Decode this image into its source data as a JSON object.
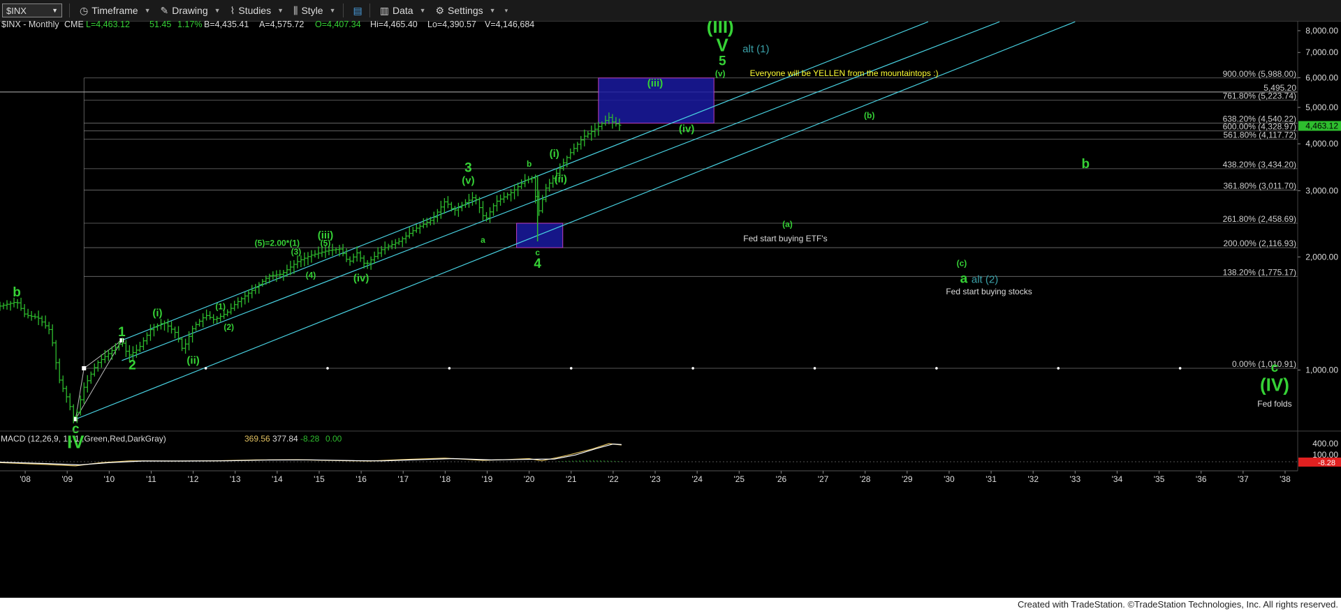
{
  "toolbar": {
    "symbol": "$INX",
    "items": [
      {
        "label": "Timeframe",
        "icon": "clock-icon"
      },
      {
        "label": "Drawing",
        "icon": "pencil-icon"
      },
      {
        "label": "Studies",
        "icon": "chart-icon"
      },
      {
        "label": "Style",
        "icon": "candles-icon"
      },
      {
        "label": "",
        "icon": "layout-icon"
      },
      {
        "label": "Data",
        "icon": "bars-icon"
      },
      {
        "label": "Settings",
        "icon": "gear-icon"
      }
    ]
  },
  "header": {
    "symbol_info": "$INX - Monthly",
    "exchange": "CME",
    "last": "L=4,463.12",
    "change": "51.45",
    "change_pct": "1.17%",
    "bid": "B=4,435.41",
    "ask": "A=4,575.72",
    "open": "O=4,407.34",
    "high": "Hi=4,465.40",
    "low": "Lo=4,390.57",
    "volume": "V=4,146,684"
  },
  "colors": {
    "price_bars": "#2ebd2e",
    "wave_label": "#36d236",
    "channel": "#48d0e0",
    "fib_line": "#777777",
    "box_fill": "#1a1aa0",
    "annotation_yellow": "#ffff33",
    "annotation_white": "#dddddd",
    "alt_label": "#3aa0a8",
    "macd_line": "#e0c060",
    "signal_line": "#ffffff",
    "hist_up": "#2ebd2e"
  },
  "chart_data": {
    "type": "bar",
    "scale": "log",
    "interval": "monthly",
    "ylim": [
      700,
      8000
    ],
    "y_ticks": [
      "1,000.00",
      "2,000.00",
      "3,000.00",
      "4,000.00",
      "5,000.00",
      "6,000.00",
      "7,000.00",
      "8,000.00"
    ],
    "y_tick_values": [
      1000,
      2000,
      3000,
      4000,
      5000,
      6000,
      7000,
      8000
    ],
    "x_range": [
      2007.4,
      2038.3
    ],
    "x_ticks": [
      "'08",
      "'09",
      "'10",
      "'11",
      "'12",
      "'13",
      "'14",
      "'15",
      "'16",
      "'17",
      "'18",
      "'19",
      "'20",
      "'21",
      "'22",
      "'23",
      "'24",
      "'25",
      "'26",
      "'27",
      "'28",
      "'29",
      "'30",
      "'31",
      "'32",
      "'33",
      "'34",
      "'35",
      "'36",
      "'37",
      "'38"
    ],
    "x_tick_values": [
      2008,
      2009,
      2010,
      2011,
      2012,
      2013,
      2014,
      2015,
      2016,
      2017,
      2018,
      2019,
      2020,
      2021,
      2022,
      2023,
      2024,
      2025,
      2026,
      2027,
      2028,
      2029,
      2030,
      2031,
      2032,
      2033,
      2034,
      2035,
      2036,
      2037,
      2038
    ],
    "last_price": "4,463.12",
    "last_price_value": 4463.12,
    "price_path": [
      [
        2007.4,
        1480
      ],
      [
        2007.8,
        1520
      ],
      [
        2008.0,
        1400
      ],
      [
        2008.3,
        1380
      ],
      [
        2008.6,
        1270
      ],
      [
        2008.8,
        950
      ],
      [
        2009.0,
        840
      ],
      [
        2009.18,
        735
      ],
      [
        2009.4,
        900
      ],
      [
        2009.7,
        1040
      ],
      [
        2010.0,
        1110
      ],
      [
        2010.3,
        1190
      ],
      [
        2010.45,
        1090
      ],
      [
        2010.7,
        1140
      ],
      [
        2011.0,
        1290
      ],
      [
        2011.3,
        1340
      ],
      [
        2011.6,
        1250
      ],
      [
        2011.75,
        1130
      ],
      [
        2012.0,
        1300
      ],
      [
        2012.3,
        1400
      ],
      [
        2012.5,
        1360
      ],
      [
        2012.8,
        1420
      ],
      [
        2013.0,
        1500
      ],
      [
        2013.4,
        1630
      ],
      [
        2013.8,
        1780
      ],
      [
        2014.1,
        1800
      ],
      [
        2014.5,
        1950
      ],
      [
        2014.8,
        2020
      ],
      [
        2015.2,
        2080
      ],
      [
        2015.5,
        2100
      ],
      [
        2015.7,
        1930
      ],
      [
        2015.9,
        2050
      ],
      [
        2016.1,
        1900
      ],
      [
        2016.5,
        2100
      ],
      [
        2016.9,
        2200
      ],
      [
        2017.3,
        2380
      ],
      [
        2017.7,
        2520
      ],
      [
        2018.0,
        2820
      ],
      [
        2018.2,
        2650
      ],
      [
        2018.7,
        2900
      ],
      [
        2018.95,
        2500
      ],
      [
        2019.2,
        2800
      ],
      [
        2019.6,
        2980
      ],
      [
        2019.9,
        3200
      ],
      [
        2020.1,
        3250
      ],
      [
        2020.2,
        2580
      ],
      [
        2020.4,
        3050
      ],
      [
        2020.7,
        3400
      ],
      [
        2020.95,
        3750
      ],
      [
        2021.3,
        4180
      ],
      [
        2021.6,
        4400
      ],
      [
        2021.9,
        4700
      ],
      [
        2022.0,
        4550
      ],
      [
        2022.2,
        4463
      ]
    ],
    "fib_levels": [
      {
        "label": "900.00% (5,988.00)",
        "value": 5988
      },
      {
        "label": "5,495.20",
        "value": 5495
      },
      {
        "label": "761.80% (5,223.74)",
        "value": 5224
      },
      {
        "label": "638.20% (4,540.22)",
        "value": 4540
      },
      {
        "label": "600.00% (4,328.97)",
        "value": 4329
      },
      {
        "label": "561.80% (4,117.72)",
        "value": 4118
      },
      {
        "label": "438.20% (3,434.20)",
        "value": 3434
      },
      {
        "label": "361.80% (3,011.70)",
        "value": 3012
      },
      {
        "label": "261.80% (2,458.69)",
        "value": 2459
      },
      {
        "label": "200.00% (2,116.93)",
        "value": 2117
      },
      {
        "label": "138.20% (1,775.17)",
        "value": 1775
      },
      {
        "label": "0.00% (1,010.91)",
        "value": 1011
      }
    ],
    "wave_labels": [
      {
        "text": "b",
        "x": 2007.8,
        "y": 1570,
        "size": "large"
      },
      {
        "text": "c",
        "x": 2009.2,
        "y": 680,
        "size": "large"
      },
      {
        "text": "IV",
        "x": 2009.2,
        "y": 620,
        "size": "xlarge"
      },
      {
        "text": "1",
        "x": 2010.3,
        "y": 1230,
        "size": "large"
      },
      {
        "text": "2",
        "x": 2010.55,
        "y": 1005,
        "size": "large"
      },
      {
        "text": "(i)",
        "x": 2011.15,
        "y": 1390,
        "size": "medium"
      },
      {
        "text": "(ii)",
        "x": 2012.0,
        "y": 1040,
        "size": "medium"
      },
      {
        "text": "(1)",
        "x": 2012.65,
        "y": 1450,
        "size": "small"
      },
      {
        "text": "(2)",
        "x": 2012.85,
        "y": 1280,
        "size": "small"
      },
      {
        "text": "(5)=2.00*(1)",
        "x": 2014.0,
        "y": 2140,
        "size": "small"
      },
      {
        "text": "(3)",
        "x": 2014.45,
        "y": 2030,
        "size": "small"
      },
      {
        "text": "(iii)",
        "x": 2015.15,
        "y": 2240,
        "size": "medium"
      },
      {
        "text": "(5)",
        "x": 2015.15,
        "y": 2140,
        "size": "small"
      },
      {
        "text": "(4)",
        "x": 2014.8,
        "y": 1760,
        "size": "small"
      },
      {
        "text": "(iv)",
        "x": 2016.0,
        "y": 1720,
        "size": "medium"
      },
      {
        "text": "3",
        "x": 2018.55,
        "y": 3370,
        "size": "large"
      },
      {
        "text": "(v)",
        "x": 2018.55,
        "y": 3130,
        "size": "medium"
      },
      {
        "text": "a",
        "x": 2018.9,
        "y": 2180,
        "size": "small"
      },
      {
        "text": "b",
        "x": 2020.0,
        "y": 3480,
        "size": "small"
      },
      {
        "text": "c",
        "x": 2020.2,
        "y": 2020,
        "size": "small"
      },
      {
        "text": "4",
        "x": 2020.2,
        "y": 1870,
        "size": "large"
      },
      {
        "text": "(i)",
        "x": 2020.6,
        "y": 3690,
        "size": "medium"
      },
      {
        "text": "(ii)",
        "x": 2020.75,
        "y": 3160,
        "size": "medium"
      },
      {
        "text": "(iii)",
        "x": 2023.0,
        "y": 5680,
        "size": "medium"
      },
      {
        "text": "(iv)",
        "x": 2023.75,
        "y": 4300,
        "size": "medium"
      },
      {
        "text": "(v)",
        "x": 2024.55,
        "y": 6050,
        "size": "small"
      },
      {
        "text": "5",
        "x": 2024.6,
        "y": 6470,
        "size": "large"
      },
      {
        "text": "V",
        "x": 2024.6,
        "y": 7050,
        "size": "xlarge"
      },
      {
        "text": "(III)",
        "x": 2024.55,
        "y": 7900,
        "size": "xlarge"
      },
      {
        "text": "(b)",
        "x": 2028.1,
        "y": 4680,
        "size": "small"
      },
      {
        "text": "b",
        "x": 2033.25,
        "y": 3450,
        "size": "large"
      },
      {
        "text": "(a)",
        "x": 2026.15,
        "y": 2400,
        "size": "small"
      },
      {
        "text": "(c)",
        "x": 2030.3,
        "y": 1890,
        "size": "small"
      },
      {
        "text": "a",
        "x": 2030.35,
        "y": 1705,
        "size": "large"
      },
      {
        "text": "c",
        "x": 2037.75,
        "y": 990,
        "size": "large"
      },
      {
        "text": "(IV)",
        "x": 2037.75,
        "y": 880,
        "size": "xlarge"
      }
    ],
    "alt_labels": [
      {
        "text": "alt (1)",
        "x": 2025.4,
        "y": 7000
      },
      {
        "text": "alt (2)",
        "x": 2030.85,
        "y": 1705
      }
    ],
    "annotations": [
      {
        "text": "Everyone will be YELLEN from the mountaintops :)",
        "x": 2027.5,
        "y": 6060,
        "color": "yellow"
      },
      {
        "text": "Fed start buying ETF's",
        "x": 2026.1,
        "y": 2200,
        "color": "white"
      },
      {
        "text": "Fed start buying stocks",
        "x": 2030.95,
        "y": 1590,
        "color": "white"
      },
      {
        "text": "Fed folds",
        "x": 2037.75,
        "y": 800,
        "color": "white"
      }
    ],
    "boxes": [
      {
        "x0": 2021.65,
        "x1": 2024.4,
        "y0": 4540,
        "y1": 5988
      },
      {
        "x0": 2019.7,
        "x1": 2020.8,
        "y0": 2117,
        "y1": 2459
      }
    ],
    "channels": [
      [
        [
          2010.3,
          1200
        ],
        [
          2029.5,
          8450
        ]
      ],
      [
        [
          2009.2,
          740
        ],
        [
          2033.0,
          8450
        ]
      ],
      [
        [
          2010.3,
          1060
        ],
        [
          2031.2,
          8450
        ]
      ]
    ],
    "indicator": {
      "label": "MACD (12,26,9, 1 , 1 ,Green,Red,DarkGray)",
      "macd": "369.56",
      "signal": "377.84",
      "histogram": "-8.28",
      "zero": "0.00",
      "y_ticks": [
        "400.00",
        "100.00"
      ],
      "last_label": "-8.28",
      "macd_path": [
        [
          2007.4,
          -20
        ],
        [
          2008.5,
          -60
        ],
        [
          2009.2,
          -90
        ],
        [
          2009.8,
          -20
        ],
        [
          2010.5,
          20
        ],
        [
          2011.5,
          15
        ],
        [
          2012.5,
          20
        ],
        [
          2013.5,
          40
        ],
        [
          2014.5,
          45
        ],
        [
          2015.5,
          25
        ],
        [
          2016.2,
          15
        ],
        [
          2017.0,
          50
        ],
        [
          2018.0,
          80
        ],
        [
          2018.9,
          30
        ],
        [
          2019.5,
          50
        ],
        [
          2020.0,
          70
        ],
        [
          2020.3,
          20
        ],
        [
          2020.9,
          140
        ],
        [
          2021.5,
          280
        ],
        [
          2021.9,
          400
        ],
        [
          2022.2,
          370
        ]
      ],
      "signal_path": [
        [
          2007.4,
          -10
        ],
        [
          2008.5,
          -40
        ],
        [
          2009.3,
          -70
        ],
        [
          2010.0,
          -20
        ],
        [
          2010.8,
          15
        ],
        [
          2011.8,
          15
        ],
        [
          2012.8,
          20
        ],
        [
          2013.8,
          38
        ],
        [
          2014.8,
          42
        ],
        [
          2015.8,
          25
        ],
        [
          2016.5,
          18
        ],
        [
          2017.3,
          45
        ],
        [
          2018.2,
          70
        ],
        [
          2019.1,
          40
        ],
        [
          2019.7,
          50
        ],
        [
          2020.2,
          55
        ],
        [
          2020.6,
          60
        ],
        [
          2021.1,
          150
        ],
        [
          2021.6,
          290
        ],
        [
          2022.0,
          390
        ],
        [
          2022.2,
          378
        ]
      ]
    }
  },
  "footer": {
    "text": "Created with TradeStation. ©TradeStation Technologies, Inc. All rights reserved."
  }
}
